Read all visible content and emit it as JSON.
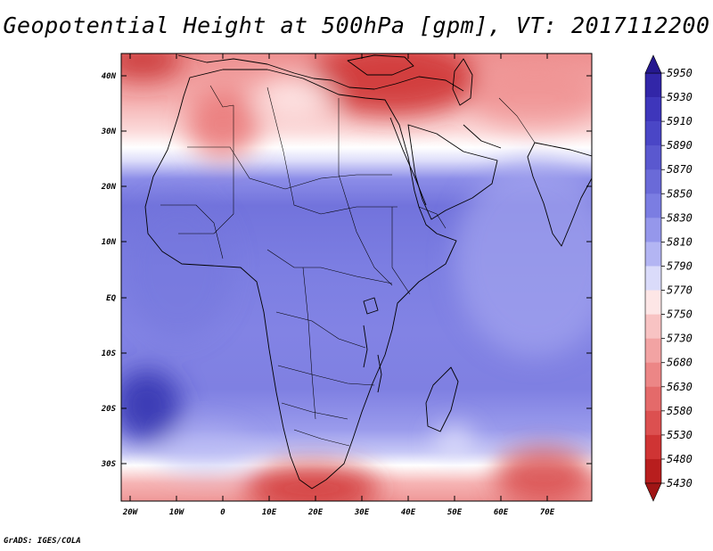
{
  "title": "Geopotential Height at 500hPa [gpm], VT: 2017112200",
  "footer": "GrADS: IGES/COLA",
  "map": {
    "variable": "Geopotential Height",
    "level": "500hPa",
    "units": "gpm",
    "valid_time": "2017112200",
    "lon_labels": [
      "20W",
      "10W",
      "0",
      "10E",
      "20E",
      "30E",
      "40E",
      "50E",
      "60E",
      "70E"
    ],
    "lat_labels": [
      "40N",
      "30N",
      "20N",
      "10N",
      "EQ",
      "10S",
      "20S",
      "30S"
    ]
  },
  "colorbar": {
    "labels": [
      "5950",
      "5930",
      "5910",
      "5890",
      "5870",
      "5850",
      "5830",
      "5810",
      "5790",
      "5770",
      "5750",
      "5730",
      "5680",
      "5630",
      "5580",
      "5530",
      "5480",
      "5430"
    ],
    "colors": [
      "#25188f",
      "#3226a8",
      "#3e36bb",
      "#4a46c6",
      "#5a58cf",
      "#6a6ad8",
      "#7b7de2",
      "#9597eb",
      "#b3b5f3",
      "#dadbfa",
      "#fde6e6",
      "#f8c3c3",
      "#f2a3a3",
      "#ec8686",
      "#e46a6a",
      "#dc5050",
      "#cf3434",
      "#b81e1e",
      "#a01515"
    ]
  }
}
